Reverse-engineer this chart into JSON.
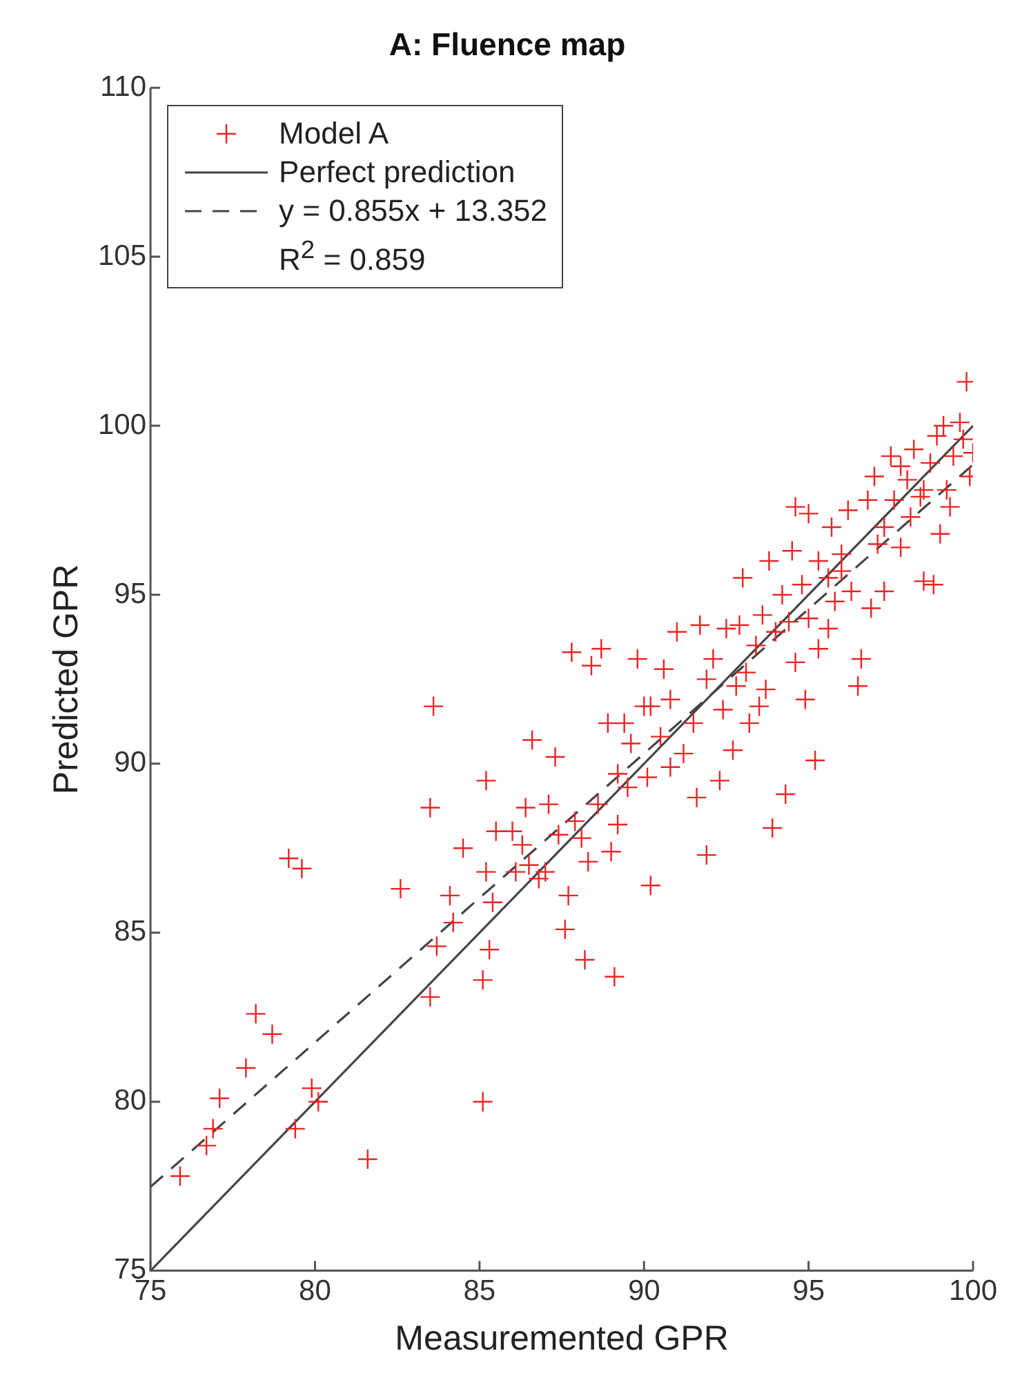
{
  "chart_data": {
    "type": "scatter",
    "title": "A: Fluence map",
    "xlabel": "Measuremented GPR",
    "ylabel": "Predicted GPR",
    "xlim": [
      75,
      100
    ],
    "xticks": [
      75,
      80,
      85,
      90,
      95,
      100
    ],
    "ylim": [
      75,
      110
    ],
    "yticks": [
      75,
      80,
      85,
      90,
      95,
      100,
      105,
      110
    ],
    "grid": false,
    "legend": "top left",
    "annotations": [
      "R$^{2}$ = 0.859"
    ],
    "series": [
      {
        "name": "Model A",
        "type": "scatter",
        "marker": "cross",
        "color": "#ee2222",
        "x": [
          75.9,
          76.7,
          76.9,
          77.1,
          77.9,
          78.2,
          78.7,
          79.2,
          79.6,
          79.4,
          79.9,
          80.1,
          81.6,
          82.6,
          83.5,
          83.6,
          83.5,
          83.7,
          84.2,
          84.1,
          84.5,
          85.1,
          85.1,
          85.3,
          85.4,
          85.2,
          85.2,
          85.5,
          86.0,
          86.3,
          86.6,
          86.4,
          87.0,
          87.6,
          87.7,
          88.2,
          89.1,
          87.8,
          88.4,
          88.7,
          89.8,
          88.9,
          89.5,
          90.2,
          90.1,
          89.0,
          88.3,
          87.4,
          86.8,
          86.1,
          87.9,
          88.6,
          89.2,
          89.6,
          90.5,
          90.2,
          90.8,
          91.2,
          91.5,
          91.9,
          91.9,
          92.4,
          92.3,
          92.7,
          92.1,
          92.5,
          93.1,
          93.2,
          93.4,
          93.6,
          93.7,
          93.9,
          94.3,
          94.8,
          95.2,
          94.6,
          95.0,
          95.3,
          95.6,
          95.8,
          95.0,
          94.6,
          94.5,
          96.0,
          96.3,
          96.6,
          96.5,
          96.9,
          97.1,
          96.8,
          97.3,
          97.6,
          97.3,
          97.8,
          98.0,
          98.2,
          98.4,
          98.5,
          98.8,
          98.7,
          99.0,
          99.2,
          99.4,
          99.6,
          99.8,
          99.7,
          100.0,
          99.9,
          99.3,
          98.9,
          98.1,
          97.5,
          95.7,
          95.3,
          94.2,
          93.8,
          93.0,
          92.9,
          91.7,
          91.0,
          90.6,
          90.0,
          89.4,
          90.8,
          91.6,
          92.8,
          93.5,
          94.0,
          94.9,
          95.6,
          96.2,
          97.8,
          98.5,
          99.1,
          97.0,
          96.0,
          94.4,
          89.2,
          88.1,
          86.5,
          87.3,
          87.1
        ],
        "values": [
          77.8,
          78.7,
          79.2,
          80.1,
          81.0,
          82.6,
          82.0,
          87.2,
          86.9,
          79.2,
          80.4,
          80.0,
          78.3,
          86.3,
          88.7,
          91.7,
          83.1,
          84.6,
          85.3,
          86.1,
          87.5,
          80.0,
          83.6,
          84.5,
          85.9,
          86.8,
          89.5,
          88.0,
          88.0,
          87.6,
          90.7,
          88.7,
          86.8,
          85.1,
          86.1,
          84.2,
          83.7,
          93.3,
          92.9,
          93.4,
          93.1,
          91.2,
          89.3,
          86.4,
          89.6,
          87.4,
          87.1,
          87.9,
          86.6,
          86.8,
          88.3,
          88.8,
          89.7,
          90.6,
          90.8,
          91.7,
          91.9,
          90.3,
          91.2,
          92.5,
          87.3,
          91.6,
          89.5,
          90.4,
          93.1,
          94.0,
          92.7,
          91.2,
          93.5,
          94.4,
          92.2,
          88.1,
          89.1,
          95.3,
          90.1,
          93.0,
          94.3,
          93.4,
          95.5,
          94.8,
          97.4,
          97.6,
          96.3,
          96.2,
          95.1,
          93.1,
          92.3,
          94.6,
          96.5,
          97.8,
          97.0,
          97.8,
          95.1,
          96.4,
          98.4,
          99.3,
          97.9,
          95.4,
          95.3,
          98.9,
          96.8,
          98.1,
          99.1,
          100.1,
          101.3,
          99.6,
          99.2,
          98.5,
          97.6,
          99.7,
          97.3,
          99.1,
          97.0,
          96.0,
          95.0,
          96.0,
          95.5,
          94.1,
          94.1,
          93.9,
          92.8,
          91.7,
          91.2,
          89.9,
          89.0,
          92.3,
          91.7,
          93.9,
          91.9,
          94.0,
          97.5,
          98.8,
          98.1,
          100.0,
          98.5,
          95.7,
          94.2,
          88.2,
          87.8,
          87.0,
          90.2,
          88.8
        ]
      },
      {
        "name": "Perfect prediction",
        "type": "line",
        "line_style": "solid",
        "color": "#444444",
        "x": [
          75,
          100
        ],
        "values": [
          75,
          100
        ]
      },
      {
        "name": "y = 0.855x + 13.352",
        "type": "line",
        "line_style": "dashed",
        "color": "#444444",
        "x": [
          75,
          100
        ],
        "values": [
          77.48,
          98.85
        ]
      }
    ]
  }
}
